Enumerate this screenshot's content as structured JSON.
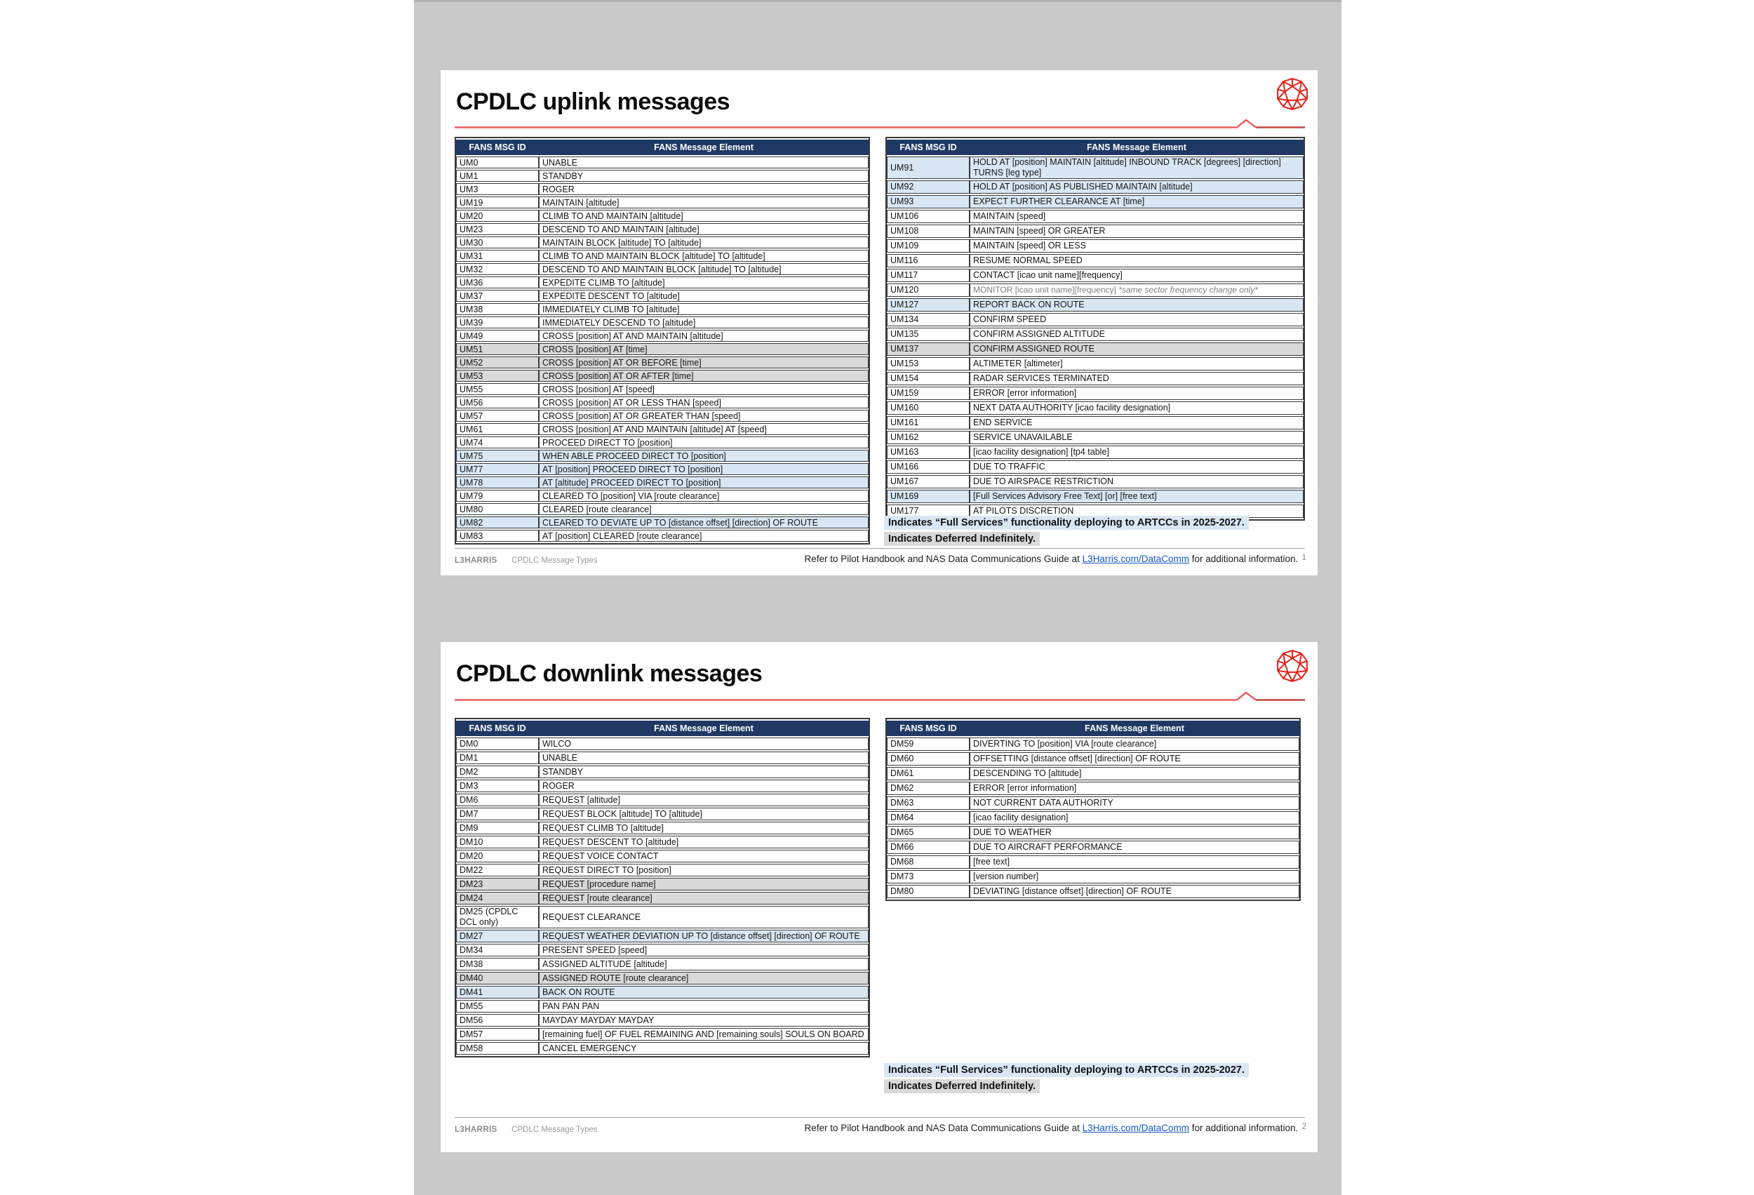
{
  "table_headers": [
    "FANS MSG ID",
    "FANS Message Element"
  ],
  "legend": {
    "full_services": "Indicates “Full Services” functionality deploying to ARTCCs in 2025-2027.",
    "deferred": "Indicates Deferred Indefinitely."
  },
  "footer": {
    "brand": "L3HARRIS",
    "doc_title": "CPDLC Message Types",
    "ref_prefix": "Refer to Pilot Handbook and NAS Data Communications Guide at ",
    "link_text": "L3Harris.com/DataComm",
    "ref_suffix": " for additional information."
  },
  "colors": {
    "header_navy": "#1f3864",
    "row_blue": "#d9e7f5",
    "row_gray": "#d9d9d9",
    "brand_red": "#e2231a",
    "rule_red": "#e86060",
    "viewer_gray": "#c9c9c9"
  },
  "pages": [
    {
      "title": "CPDLC uplink messages",
      "page_number": "1",
      "left_table": {
        "rows": [
          [
            "UM0",
            "UNABLE",
            ""
          ],
          [
            "UM1",
            "STANDBY",
            ""
          ],
          [
            "UM3",
            "ROGER",
            ""
          ],
          [
            "UM19",
            "MAINTAIN [altitude]",
            ""
          ],
          [
            "UM20",
            "CLIMB TO AND MAINTAIN [altitude]",
            ""
          ],
          [
            "UM23",
            "DESCEND TO AND MAINTAIN [altitude]",
            ""
          ],
          [
            "UM30",
            "MAINTAIN BLOCK [altitude] TO [altitude]",
            ""
          ],
          [
            "UM31",
            "CLIMB TO AND MAINTAIN BLOCK [altitude] TO [altitude]",
            ""
          ],
          [
            "UM32",
            "DESCEND TO AND MAINTAIN BLOCK [altitude] TO [altitude]",
            ""
          ],
          [
            "UM36",
            "EXPEDITE CLIMB TO [altitude]",
            ""
          ],
          [
            "UM37",
            "EXPEDITE DESCENT TO [altitude]",
            ""
          ],
          [
            "UM38",
            "IMMEDIATELY CLIMB TO [altitude]",
            ""
          ],
          [
            "UM39",
            "IMMEDIATELY DESCEND TO [altitude]",
            ""
          ],
          [
            "UM49",
            "CROSS [position] AT AND MAINTAIN [altitude]",
            ""
          ],
          [
            "UM51",
            "CROSS [position] AT [time]",
            "gray"
          ],
          [
            "UM52",
            "CROSS [position] AT OR BEFORE [time]",
            "gray"
          ],
          [
            "UM53",
            "CROSS [position] AT OR AFTER [time]",
            "gray"
          ],
          [
            "UM55",
            "CROSS [position] AT [speed]",
            ""
          ],
          [
            "UM56",
            "CROSS [position] AT OR LESS THAN [speed]",
            ""
          ],
          [
            "UM57",
            "CROSS [position] AT OR GREATER THAN [speed]",
            ""
          ],
          [
            "UM61",
            "CROSS [position] AT AND MAINTAIN [altitude] AT [speed]",
            ""
          ],
          [
            "UM74",
            "PROCEED DIRECT TO [position]",
            ""
          ],
          [
            "UM75",
            "WHEN ABLE PROCEED DIRECT TO [position]",
            "blue"
          ],
          [
            "UM77",
            "AT [position] PROCEED DIRECT TO [position]",
            "blue"
          ],
          [
            "UM78",
            "AT [altitude] PROCEED DIRECT TO [position]",
            "blue"
          ],
          [
            "UM79",
            "CLEARED TO [position] VIA [route clearance]",
            ""
          ],
          [
            "UM80",
            "CLEARED [route clearance]",
            ""
          ],
          [
            "UM82",
            "CLEARED TO DEVIATE UP TO [distance offset] [direction] OF ROUTE",
            "blue"
          ],
          [
            "UM83",
            "AT [position] CLEARED [route clearance]",
            ""
          ]
        ]
      },
      "right_table": {
        "rows": [
          [
            "UM91",
            "HOLD AT [position] MAINTAIN [altitude] INBOUND TRACK [degrees] [direction] TURNS [leg type]",
            "blue"
          ],
          [
            "UM92",
            "HOLD AT [position] AS PUBLISHED MAINTAIN [altitude]",
            "blue"
          ],
          [
            "UM93",
            "EXPECT FURTHER CLEARANCE AT [time]",
            "blue"
          ],
          [
            "UM106",
            "MAINTAIN [speed]",
            ""
          ],
          [
            "UM108",
            "MAINTAIN [speed] OR GREATER",
            ""
          ],
          [
            "UM109",
            "MAINTAIN [speed] OR LESS",
            ""
          ],
          [
            "UM116",
            "RESUME NORMAL SPEED",
            ""
          ],
          [
            "UM117",
            "CONTACT [icao unit name][frequency]",
            ""
          ],
          [
            "UM120",
            "MONITOR [icao unit name][frequency]",
            "",
            "*same sector frequency change only*"
          ],
          [
            "UM127",
            "REPORT BACK ON ROUTE",
            "blue"
          ],
          [
            "UM134",
            "CONFIRM SPEED",
            ""
          ],
          [
            "UM135",
            "CONFIRM ASSIGNED ALTITUDE",
            ""
          ],
          [
            "UM137",
            "CONFIRM ASSIGNED ROUTE",
            "gray"
          ],
          [
            "UM153",
            "ALTIMETER [altimeter]",
            ""
          ],
          [
            "UM154",
            "RADAR SERVICES TERMINATED",
            ""
          ],
          [
            "UM159",
            "ERROR [error information]",
            ""
          ],
          [
            "UM160",
            "NEXT DATA AUTHORITY [icao facility designation]",
            ""
          ],
          [
            "UM161",
            "END SERVICE",
            ""
          ],
          [
            "UM162",
            "SERVICE UNAVAILABLE",
            ""
          ],
          [
            "UM163",
            "[icao facility designation] [tp4 table]",
            ""
          ],
          [
            "UM166",
            "DUE TO TRAFFIC",
            ""
          ],
          [
            "UM167",
            "DUE TO AIRSPACE RESTRICTION",
            ""
          ],
          [
            "UM169",
            "[Full Services Advisory Free Text] [or] [free text]",
            "blue"
          ],
          [
            "UM177",
            "AT PILOTS DISCRETION",
            ""
          ]
        ]
      }
    },
    {
      "title": "CPDLC downlink messages",
      "page_number": "2",
      "left_table": {
        "rows": [
          [
            "DM0",
            "WILCO",
            ""
          ],
          [
            "DM1",
            "UNABLE",
            ""
          ],
          [
            "DM2",
            "STANDBY",
            ""
          ],
          [
            "DM3",
            "ROGER",
            ""
          ],
          [
            "DM6",
            "REQUEST [altitude]",
            ""
          ],
          [
            "DM7",
            "REQUEST BLOCK [altitude] TO [altitude]",
            ""
          ],
          [
            "DM9",
            "REQUEST CLIMB TO [altitude]",
            ""
          ],
          [
            "DM10",
            "REQUEST DESCENT TO [altitude]",
            ""
          ],
          [
            "DM20",
            "REQUEST VOICE CONTACT",
            ""
          ],
          [
            "DM22",
            "REQUEST DIRECT TO [position]",
            ""
          ],
          [
            "DM23",
            "REQUEST [procedure name]",
            "gray"
          ],
          [
            "DM24",
            "REQUEST [route clearance]",
            "gray"
          ],
          [
            "DM25 (CPDLC DCL only)",
            "REQUEST CLEARANCE",
            ""
          ],
          [
            "DM27",
            "REQUEST WEATHER DEVIATION UP TO [distance offset] [direction] OF ROUTE",
            "blue"
          ],
          [
            "DM34",
            "PRESENT SPEED [speed]",
            ""
          ],
          [
            "DM38",
            "ASSIGNED ALTITUDE [altitude]",
            ""
          ],
          [
            "DM40",
            "ASSIGNED ROUTE [route clearance]",
            "gray"
          ],
          [
            "DM41",
            "BACK ON ROUTE",
            "blue"
          ],
          [
            "DM55",
            "PAN PAN PAN",
            ""
          ],
          [
            "DM56",
            "MAYDAY MAYDAY MAYDAY",
            ""
          ],
          [
            "DM57",
            "[remaining fuel] OF FUEL REMAINING AND [remaining souls] SOULS ON BOARD",
            ""
          ],
          [
            "DM58",
            "CANCEL EMERGENCY",
            ""
          ]
        ]
      },
      "right_table": {
        "rows": [
          [
            "DM59",
            "DIVERTING TO [position] VIA [route clearance]",
            ""
          ],
          [
            "DM60",
            "OFFSETTING [distance offset] [direction] OF ROUTE",
            ""
          ],
          [
            "DM61",
            "DESCENDING TO [altitude]",
            ""
          ],
          [
            "DM62",
            "ERROR [error information]",
            ""
          ],
          [
            "DM63",
            "NOT CURRENT DATA AUTHORITY",
            ""
          ],
          [
            "DM64",
            "[icao facility designation]",
            ""
          ],
          [
            "DM65",
            "DUE TO WEATHER",
            ""
          ],
          [
            "DM66",
            "DUE TO AIRCRAFT PERFORMANCE",
            ""
          ],
          [
            "DM68",
            "[free text]",
            ""
          ],
          [
            "DM73",
            "[version number]",
            ""
          ],
          [
            "DM80",
            "DEVIATING [distance offset] [direction] OF ROUTE",
            ""
          ]
        ]
      }
    }
  ]
}
